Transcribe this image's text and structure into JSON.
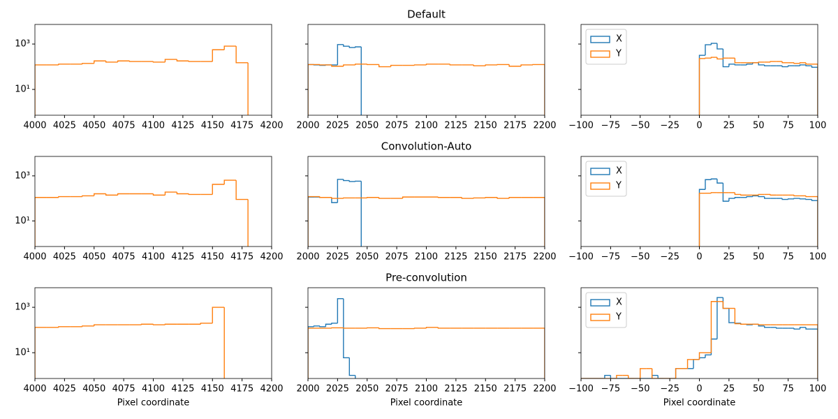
{
  "chart_data": [
    {
      "type": "histogram",
      "xlim": [
        4000,
        4200
      ],
      "ylim": [
        0.73,
        7300
      ],
      "log_y": true,
      "xticks": [
        4000,
        4025,
        4050,
        4075,
        4100,
        4125,
        4150,
        4175,
        4200
      ],
      "yticks": [
        {
          "value": 10,
          "label": "10¹"
        },
        {
          "value": 1000,
          "label": "10³"
        }
      ],
      "show_ytick_labels": true,
      "series": [
        {
          "color": "#ff7f0e",
          "bins": [
            4000,
            4010,
            4020,
            4030,
            4040,
            4050,
            4060,
            4070,
            4080,
            4090,
            4100,
            4110,
            4120,
            4130,
            4140,
            4150,
            4160,
            4170,
            4180
          ],
          "values": [
            120,
            120,
            130,
            130,
            140,
            180,
            160,
            180,
            170,
            170,
            160,
            210,
            180,
            170,
            170,
            560,
            810,
            150
          ]
        }
      ]
    },
    {
      "type": "histogram",
      "title": "Default",
      "xlim": [
        2000,
        2200
      ],
      "ylim": [
        0.73,
        7300
      ],
      "log_y": true,
      "xticks": [
        2000,
        2025,
        2050,
        2075,
        2100,
        2125,
        2150,
        2175,
        2200
      ],
      "yticks": [
        10,
        1000
      ],
      "show_ytick_labels": false,
      "series": [
        {
          "color": "#1f77b4",
          "bins": [
            2000,
            2005,
            2010,
            2015,
            2020,
            2025,
            2030,
            2035,
            2040,
            2045
          ],
          "values": [
            125,
            120,
            115,
            120,
            120,
            950,
            800,
            700,
            750
          ]
        },
        {
          "color": "#ff7f0e",
          "bins": [
            2000,
            2010,
            2020,
            2030,
            2040,
            2050,
            2060,
            2070,
            2080,
            2090,
            2100,
            2110,
            2120,
            2130,
            2140,
            2150,
            2160,
            2170,
            2180,
            2190,
            2200
          ],
          "values": [
            125,
            120,
            105,
            120,
            130,
            125,
            100,
            115,
            115,
            120,
            130,
            130,
            120,
            120,
            110,
            120,
            125,
            105,
            120,
            125
          ]
        }
      ]
    },
    {
      "type": "histogram",
      "xlim": [
        -100,
        100
      ],
      "ylim": [
        0.73,
        7300
      ],
      "log_y": true,
      "xticks": [
        {
          "value": -100,
          "label": "−100"
        },
        {
          "value": -75,
          "label": "−75"
        },
        {
          "value": -50,
          "label": "−50"
        },
        {
          "value": -25,
          "label": "−25"
        },
        0,
        25,
        50,
        75,
        100
      ],
      "yticks": [
        10,
        1000
      ],
      "show_ytick_labels": false,
      "legend": "upper left",
      "series": [
        {
          "name": "X",
          "color": "#1f77b4",
          "bins": [
            0,
            5,
            10,
            15,
            20,
            25,
            30,
            35,
            40,
            45,
            50,
            55,
            60,
            65,
            70,
            75,
            80,
            85,
            90,
            95,
            100
          ],
          "values": [
            320,
            930,
            1070,
            610,
            100,
            130,
            120,
            120,
            130,
            150,
            120,
            110,
            110,
            110,
            100,
            110,
            110,
            120,
            110,
            95
          ]
        },
        {
          "name": "Y",
          "color": "#ff7f0e",
          "bins": [
            0,
            5,
            10,
            15,
            20,
            25,
            30,
            35,
            40,
            45,
            50,
            55,
            60,
            65,
            70,
            75,
            80,
            85,
            90,
            95,
            100
          ],
          "values": [
            230,
            240,
            260,
            220,
            240,
            240,
            150,
            150,
            150,
            150,
            160,
            160,
            170,
            170,
            150,
            150,
            140,
            150,
            130,
            130
          ]
        }
      ]
    },
    {
      "type": "histogram",
      "xlim": [
        4000,
        4200
      ],
      "ylim": [
        0.73,
        7300
      ],
      "log_y": true,
      "xticks": [
        4000,
        4025,
        4050,
        4075,
        4100,
        4125,
        4150,
        4175,
        4200
      ],
      "yticks": [
        {
          "value": 10,
          "label": "10¹"
        },
        {
          "value": 1000,
          "label": "10³"
        }
      ],
      "show_ytick_labels": true,
      "series": [
        {
          "color": "#ff7f0e",
          "bins": [
            4000,
            4010,
            4020,
            4030,
            4040,
            4050,
            4060,
            4070,
            4080,
            4090,
            4100,
            4110,
            4120,
            4130,
            4140,
            4150,
            4160,
            4170,
            4180
          ],
          "values": [
            110,
            110,
            120,
            120,
            130,
            160,
            140,
            160,
            160,
            160,
            140,
            190,
            160,
            150,
            150,
            420,
            640,
            90
          ]
        }
      ]
    },
    {
      "type": "histogram",
      "title": "Convolution-Auto",
      "xlim": [
        2000,
        2200
      ],
      "ylim": [
        0.73,
        7300
      ],
      "log_y": true,
      "xticks": [
        2000,
        2025,
        2050,
        2075,
        2100,
        2125,
        2150,
        2175,
        2200
      ],
      "yticks": [
        10,
        1000
      ],
      "show_ytick_labels": false,
      "series": [
        {
          "color": "#1f77b4",
          "bins": [
            2000,
            2005,
            2010,
            2015,
            2020,
            2025,
            2030,
            2035,
            2040,
            2045
          ],
          "values": [
            115,
            115,
            110,
            110,
            65,
            700,
            620,
            560,
            580
          ]
        },
        {
          "color": "#ff7f0e",
          "bins": [
            2000,
            2010,
            2020,
            2030,
            2040,
            2050,
            2060,
            2070,
            2080,
            2090,
            2100,
            2110,
            2120,
            2130,
            2140,
            2150,
            2160,
            2170,
            2180,
            2190,
            2200
          ],
          "values": [
            120,
            110,
            100,
            105,
            105,
            110,
            100,
            100,
            115,
            115,
            115,
            110,
            110,
            100,
            105,
            110,
            100,
            110,
            110,
            110
          ]
        }
      ]
    },
    {
      "type": "histogram",
      "xlim": [
        -100,
        100
      ],
      "ylim": [
        0.73,
        7300
      ],
      "log_y": true,
      "xticks": [
        {
          "value": -100,
          "label": "−100"
        },
        {
          "value": -75,
          "label": "−75"
        },
        {
          "value": -50,
          "label": "−50"
        },
        {
          "value": -25,
          "label": "−25"
        },
        0,
        25,
        50,
        75,
        100
      ],
      "yticks": [
        10,
        1000
      ],
      "show_ytick_labels": false,
      "legend": "upper left",
      "series": [
        {
          "name": "X",
          "color": "#1f77b4",
          "bins": [
            0,
            5,
            10,
            15,
            20,
            25,
            30,
            35,
            40,
            45,
            50,
            55,
            60,
            65,
            70,
            75,
            80,
            85,
            90,
            95,
            100
          ],
          "values": [
            250,
            680,
            730,
            480,
            75,
            100,
            110,
            110,
            120,
            130,
            120,
            100,
            100,
            100,
            90,
            95,
            100,
            95,
            90,
            80
          ]
        },
        {
          "name": "Y",
          "color": "#ff7f0e",
          "bins": [
            0,
            5,
            10,
            15,
            20,
            25,
            30,
            35,
            40,
            45,
            50,
            55,
            60,
            65,
            70,
            75,
            80,
            85,
            90,
            95,
            100
          ],
          "values": [
            170,
            170,
            180,
            180,
            180,
            180,
            150,
            140,
            140,
            140,
            150,
            150,
            140,
            140,
            140,
            140,
            130,
            130,
            120,
            120
          ]
        }
      ]
    },
    {
      "type": "histogram",
      "xlabel": "Pixel coordinate",
      "xlim": [
        4000,
        4200
      ],
      "ylim": [
        0.73,
        7300
      ],
      "log_y": true,
      "xticks": [
        4000,
        4025,
        4050,
        4075,
        4100,
        4125,
        4150,
        4175,
        4200
      ],
      "yticks": [
        {
          "value": 10,
          "label": "10¹"
        },
        {
          "value": 1000,
          "label": "10³"
        }
      ],
      "show_ytick_labels": true,
      "series": [
        {
          "color": "#ff7f0e",
          "bins": [
            4000,
            4010,
            4020,
            4030,
            4040,
            4050,
            4060,
            4070,
            4080,
            4090,
            4100,
            4110,
            4120,
            4130,
            4140,
            4150,
            4160
          ],
          "values": [
            130,
            130,
            140,
            140,
            150,
            170,
            170,
            170,
            170,
            180,
            170,
            180,
            180,
            180,
            200,
            1000
          ]
        }
      ]
    },
    {
      "type": "histogram",
      "title": "Pre-convolution",
      "xlabel": "Pixel coordinate",
      "xlim": [
        2000,
        2200
      ],
      "ylim": [
        0.73,
        7300
      ],
      "log_y": true,
      "xticks": [
        2000,
        2025,
        2050,
        2075,
        2100,
        2125,
        2150,
        2175,
        2200
      ],
      "yticks": [
        10,
        1000
      ],
      "show_ytick_labels": false,
      "series": [
        {
          "color": "#1f77b4",
          "bins": [
            2000,
            2005,
            2010,
            2015,
            2020,
            2025,
            2030,
            2035,
            2040
          ],
          "values": [
            140,
            150,
            140,
            180,
            200,
            2400,
            6,
            1
          ]
        },
        {
          "color": "#ff7f0e",
          "bins": [
            2000,
            2010,
            2020,
            2030,
            2040,
            2050,
            2060,
            2070,
            2080,
            2090,
            2100,
            2110,
            2120,
            2130,
            2140,
            2150,
            2160,
            2170,
            2180,
            2190,
            2200
          ],
          "values": [
            120,
            120,
            125,
            120,
            120,
            125,
            115,
            115,
            115,
            120,
            130,
            120,
            120,
            120,
            120,
            120,
            120,
            120,
            120,
            120
          ]
        }
      ]
    },
    {
      "type": "histogram",
      "xlabel": "Pixel coordinate",
      "xlim": [
        -100,
        100
      ],
      "ylim": [
        0.73,
        7300
      ],
      "log_y": true,
      "xticks": [
        {
          "value": -100,
          "label": "−100"
        },
        {
          "value": -75,
          "label": "−75"
        },
        {
          "value": -50,
          "label": "−50"
        },
        {
          "value": -25,
          "label": "−25"
        },
        0,
        25,
        50,
        75,
        100
      ],
      "yticks": [
        10,
        1000
      ],
      "show_ytick_labels": false,
      "legend": "upper left",
      "series": [
        {
          "name": "X",
          "color": "#1f77b4",
          "bins": [
            -100,
            -95,
            -90,
            -85,
            -80,
            -75,
            -70,
            -65,
            -60,
            -55,
            -50,
            -45,
            -40,
            -35,
            -30,
            -25,
            -20,
            -15,
            -10,
            -5,
            0,
            5,
            10,
            15,
            20,
            25,
            30,
            35,
            40,
            45,
            50,
            55,
            60,
            65,
            70,
            75,
            80,
            85,
            90,
            95,
            100
          ],
          "values": [
            0,
            0,
            0,
            0,
            1,
            0,
            0,
            0,
            0,
            0,
            0,
            0,
            1,
            0,
            0,
            0,
            2,
            2,
            2,
            5,
            6,
            8,
            40,
            2700,
            900,
            210,
            200,
            180,
            170,
            180,
            150,
            130,
            130,
            120,
            120,
            120,
            110,
            130,
            110,
            110
          ]
        },
        {
          "name": "Y",
          "color": "#ff7f0e",
          "bins": [
            -100,
            -95,
            -90,
            -85,
            -80,
            -75,
            -70,
            -65,
            -60,
            -55,
            -50,
            -45,
            -40,
            -35,
            -30,
            -25,
            -20,
            -15,
            -10,
            -5,
            0,
            5,
            10,
            15,
            20,
            25,
            30,
            35,
            40,
            45,
            50,
            55,
            60,
            65,
            70,
            75,
            80,
            85,
            90,
            95,
            100
          ],
          "values": [
            0,
            0,
            0,
            0,
            0,
            0,
            1,
            1,
            0,
            0,
            2,
            2,
            0,
            0,
            0,
            0,
            2,
            2,
            5,
            5,
            10,
            10,
            1800,
            1800,
            900,
            900,
            190,
            180,
            180,
            180,
            170,
            170,
            170,
            170,
            170,
            170,
            170,
            170,
            170,
            170
          ]
        }
      ]
    }
  ]
}
